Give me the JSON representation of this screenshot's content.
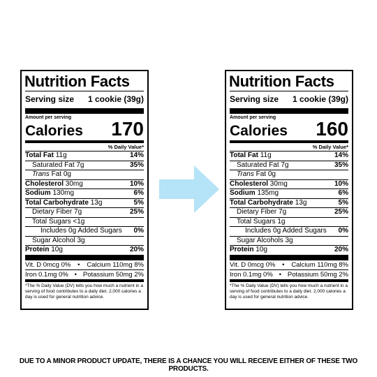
{
  "labels": [
    {
      "title": "Nutrition Facts",
      "serving_label": "Serving size",
      "serving_value": "1 cookie (39g)",
      "amount_per_serving": "Amount per serving",
      "calories_label": "Calories",
      "calories_value": "170",
      "dv_header": "% Daily Value*",
      "rows": {
        "total_fat": {
          "name": "Total Fat",
          "amount": "11g",
          "pct": "14%"
        },
        "saturated_fat": {
          "name": "Saturated Fat 7g",
          "pct": "35%"
        },
        "trans_fat_italic": "Trans",
        "trans_fat_rest": "Fat 0g",
        "cholesterol": {
          "name": "Cholesterol",
          "amount": "30mg",
          "pct": "10%"
        },
        "sodium": {
          "name": "Sodium",
          "amount": "130mg",
          "pct": "6%"
        },
        "total_carb": {
          "name": "Total Carbohydrate",
          "amount": "13g",
          "pct": "5%"
        },
        "fiber": {
          "name": "Dietary Fiber 7g",
          "pct": "25%"
        },
        "total_sugars": {
          "name": "Total Sugars <1g"
        },
        "added_sugars": {
          "name": "Includes 0g Added Sugars",
          "pct": "0%"
        },
        "sugar_alcohol": {
          "name": "Sugar Alcohol 3g"
        },
        "protein": {
          "name": "Protein",
          "amount": "10g",
          "pct": "20%"
        }
      },
      "vit_d": "Vit. D 0mcg 0%",
      "calcium": "Calcium 110mg 8%",
      "iron": "Iron 0.1mg 0%",
      "potassium": "Potassium 50mg 2%",
      "bullet": "•",
      "footnote": "*The % Daily Value (DV) tells you how much a nutrient in a serving of food contributes to a daily diet. 2,000 calories a day is used for general nutrition advice."
    },
    {
      "title": "Nutrition Facts",
      "serving_label": "Serving size",
      "serving_value": "1 cookie (39g)",
      "amount_per_serving": "Amount per serving",
      "calories_label": "Calories",
      "calories_value": "160",
      "dv_header": "% Daily Value*",
      "rows": {
        "total_fat": {
          "name": "Total Fat",
          "amount": "11g",
          "pct": "14%"
        },
        "saturated_fat": {
          "name": "Saturated Fat 7g",
          "pct": "35%"
        },
        "trans_fat_italic": "Trans",
        "trans_fat_rest": "Fat 0g",
        "cholesterol": {
          "name": "Cholesterol",
          "amount": "30mg",
          "pct": "10%"
        },
        "sodium": {
          "name": "Sodium",
          "amount": "135mg",
          "pct": "6%"
        },
        "total_carb": {
          "name": "Total Carbohydrate",
          "amount": "13g",
          "pct": "5%"
        },
        "fiber": {
          "name": "Dietary Fiber 7g",
          "pct": "25%"
        },
        "total_sugars": {
          "name": "Total Sugars 1g"
        },
        "added_sugars": {
          "name": "Includes 0g Added Sugars",
          "pct": "0%"
        },
        "sugar_alcohol": {
          "name": "Sugar Alcohols 3g"
        },
        "protein": {
          "name": "Protein",
          "amount": "10g",
          "pct": "20%"
        }
      },
      "vit_d": "Vit. D 0mcg 0%",
      "calcium": "Calcium 110mg 8%",
      "iron": "Iron 0.1mg 0%",
      "potassium": "Potassium 50mg 2%",
      "bullet": "•",
      "footnote": "*The % Daily Value (DV) tells you how much a nutrient in a serving of food contributes to a daily diet. 2,000 calories a day is used for general nutrition advice."
    }
  ],
  "arrow": {
    "icon": "right-arrow-icon",
    "color": "#b5e3f7"
  },
  "disclaimer": "DUE TO A MINOR PRODUCT UPDATE, THERE IS A CHANCE YOU WILL RECEIVE EITHER OF THESE TWO PRODUCTS."
}
